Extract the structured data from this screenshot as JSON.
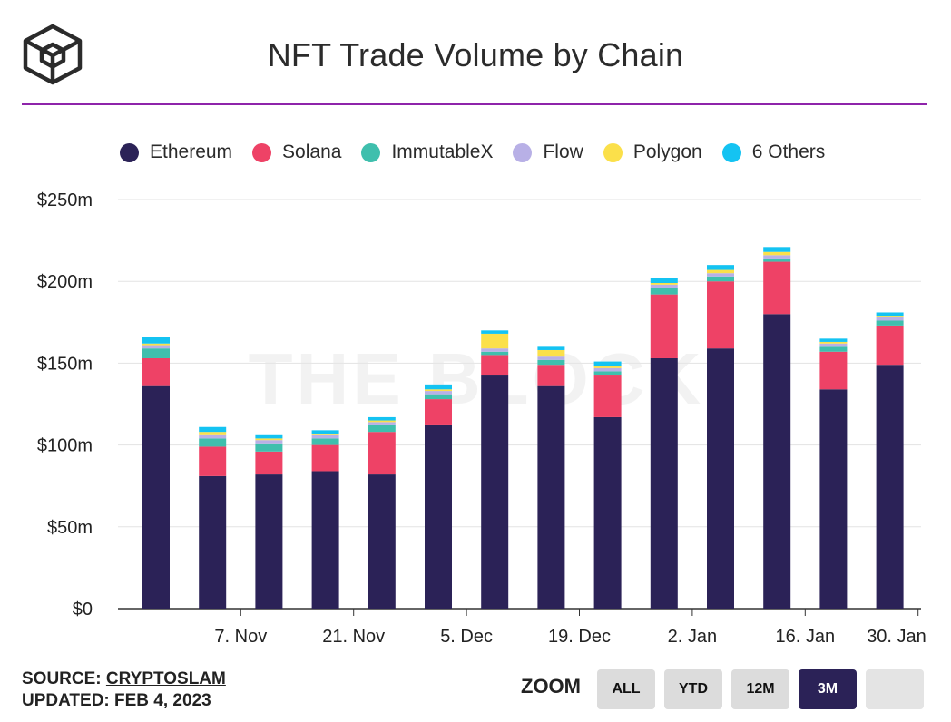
{
  "header": {
    "title": "NFT Trade Volume by Chain"
  },
  "colors": {
    "accent_rule": "#8e24aa",
    "logo": "#2b2b2b",
    "Ethereum": "#2b2257",
    "Solana": "#ee4266",
    "ImmutableX": "#3fbfad",
    "Flow": "#b8b0e6",
    "Polygon": "#fbe04a",
    "6 Others": "#14c3f2"
  },
  "watermark": "THE BLOCK",
  "chart_data": {
    "type": "bar",
    "stacked": true,
    "title": "NFT Trade Volume by Chain",
    "xlabel": "",
    "ylabel": "",
    "ylim": [
      0,
      250
    ],
    "y_ticks": [
      "$0",
      "$50m",
      "$100m",
      "$150m",
      "$200m",
      "$250m"
    ],
    "y_tick_values": [
      0,
      50,
      100,
      150,
      200,
      250
    ],
    "x_tick_labels": [
      "7. Nov",
      "21. Nov",
      "5. Dec",
      "19. Dec",
      "2. Jan",
      "16. Jan",
      "30. Jan"
    ],
    "x_tick_after_bar": [
      1.5,
      3.5,
      5.5,
      7.5,
      9.5,
      11.5,
      13.5
    ],
    "legend": [
      "Ethereum",
      "Solana",
      "ImmutableX",
      "Flow",
      "Polygon",
      "6 Others"
    ],
    "legend_position": "top",
    "grid": true,
    "units": "USD millions",
    "series": [
      {
        "name": "Ethereum",
        "values": [
          136,
          81,
          82,
          84,
          82,
          112,
          143,
          136,
          117,
          153,
          159,
          180,
          134,
          149
        ]
      },
      {
        "name": "Solana",
        "values": [
          17,
          18,
          14,
          16,
          26,
          16,
          12,
          13,
          26,
          39,
          41,
          32,
          23,
          24
        ]
      },
      {
        "name": "ImmutableX",
        "values": [
          6,
          5,
          5,
          4,
          4,
          3,
          2,
          3,
          2,
          4,
          3,
          2,
          3,
          3
        ]
      },
      {
        "name": "Flow",
        "values": [
          2,
          2,
          2,
          2,
          2,
          2,
          2,
          2,
          2,
          2,
          2,
          2,
          2,
          2
        ]
      },
      {
        "name": "Polygon",
        "values": [
          1,
          2,
          1,
          1,
          1,
          1,
          9,
          4,
          1,
          1,
          2,
          2,
          1,
          1
        ]
      },
      {
        "name": "6 Others",
        "values": [
          4,
          3,
          2,
          2,
          2,
          3,
          2,
          2,
          3,
          3,
          3,
          3,
          2,
          2
        ]
      }
    ]
  },
  "footer": {
    "source_prefix": "SOURCE:",
    "source_name": "CRYPTOSLAM",
    "updated": "UPDATED: FEB 4, 2023"
  },
  "zoom": {
    "label": "ZOOM",
    "buttons": [
      "ALL",
      "YTD",
      "12M",
      "3M",
      ""
    ],
    "active": "3M"
  }
}
